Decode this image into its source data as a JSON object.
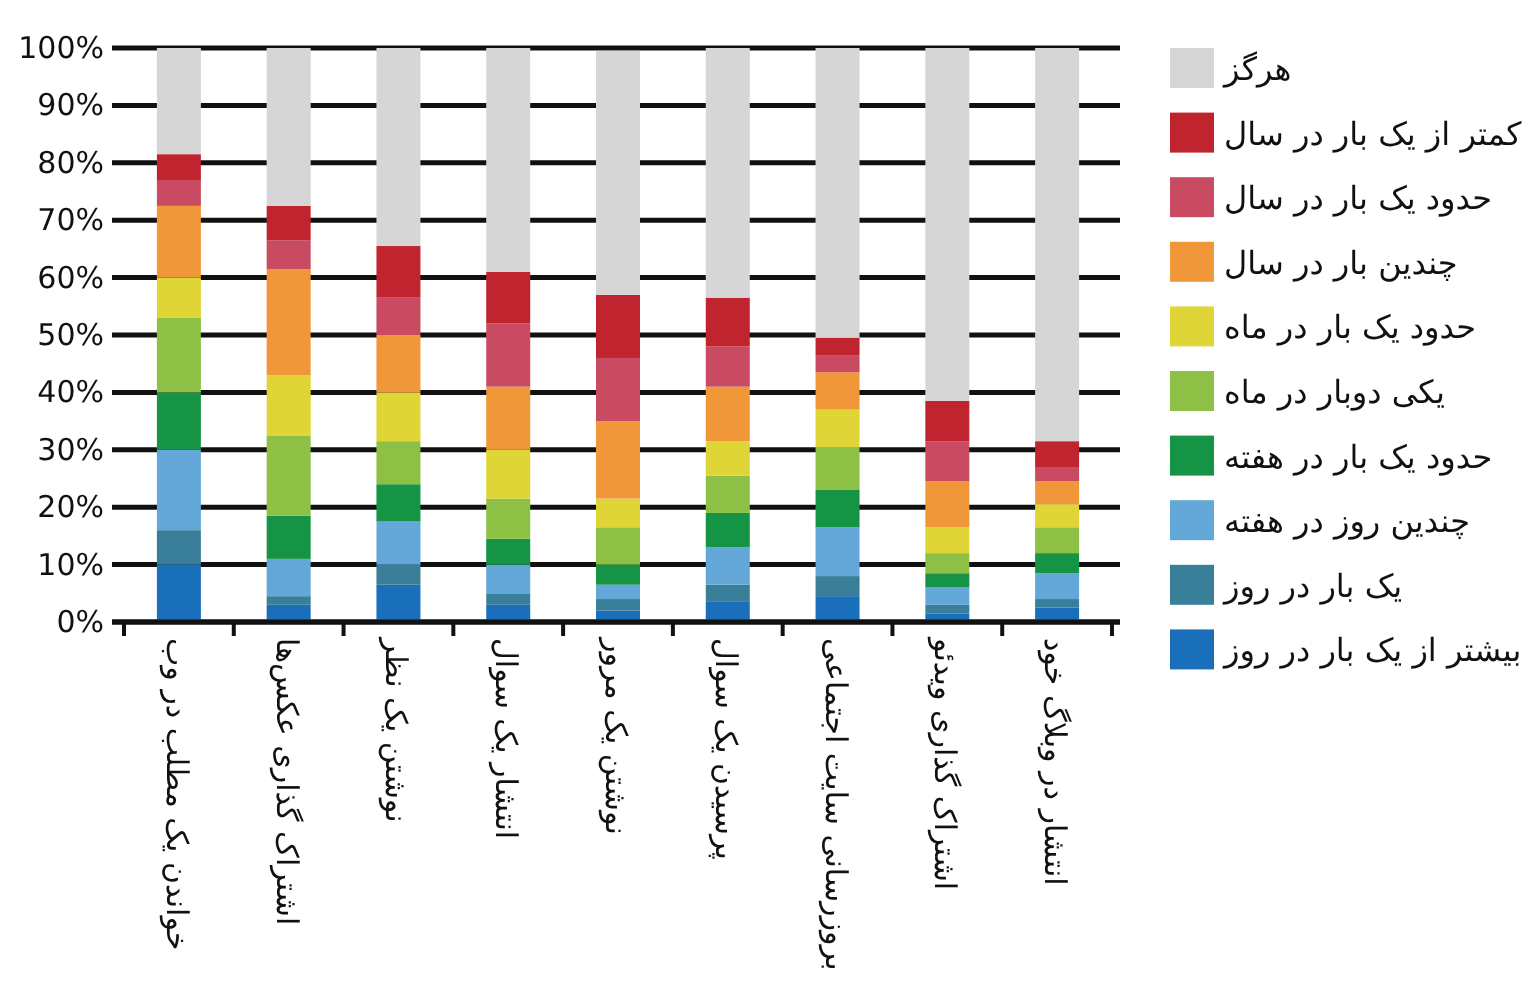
{
  "chart_data": {
    "type": "bar",
    "stacked": true,
    "categories": [
      "خواندن یک مطلب در وب",
      "اشتراک گذاری عکس‌ها",
      "نوشتن یک نظر",
      "انتشار یک سوال",
      "نوشتن یک مرور",
      "پرسیدن یک سوال",
      "بروزرسانی سایت اجتماعی",
      "اشتراک گذاری ویدئو",
      "انتشار در وبلاگ خود"
    ],
    "series": [
      {
        "name": "بیشتر از یک بار در روز",
        "color": "#1a6fba",
        "values": [
          10,
          3,
          6.5,
          3,
          2,
          3.5,
          4.5,
          1.5,
          2.5
        ]
      },
      {
        "name": "یک بار در روز",
        "color": "#3a7f99",
        "values": [
          6,
          1.5,
          3.5,
          2,
          2,
          3,
          3.5,
          1.5,
          1.5
        ]
      },
      {
        "name": "چندین روز در هفته",
        "color": "#63a8d8",
        "values": [
          14,
          6.5,
          7.5,
          5,
          2.5,
          6.5,
          8.5,
          3,
          4.5
        ]
      },
      {
        "name": "حدود یک بار در هفته",
        "color": "#159445",
        "values": [
          10,
          7.5,
          6.5,
          4.5,
          3.5,
          6,
          6.5,
          2.5,
          3.5
        ]
      },
      {
        "name": "یکی دوبار در ماه",
        "color": "#8dc044",
        "values": [
          13,
          14,
          7.5,
          7,
          6.5,
          6.5,
          7.5,
          3.5,
          4.5
        ]
      },
      {
        "name": "حدود یک بار در ماه",
        "color": "#e0d536",
        "values": [
          7,
          10.5,
          8.5,
          8.5,
          5,
          6,
          6.5,
          4.5,
          4
        ]
      },
      {
        "name": "چندین بار در سال",
        "color": "#f0973a",
        "values": [
          12.5,
          18.5,
          10,
          11,
          13.5,
          9.5,
          6.5,
          8,
          4
        ]
      },
      {
        "name": "حدود یک بار در سال",
        "color": "#c84b62",
        "values": [
          4.5,
          5,
          6.5,
          11,
          11,
          7,
          3,
          7,
          2.5
        ]
      },
      {
        "name": "کمتر از یک بار در سال",
        "color": "#c0242e",
        "values": [
          4.5,
          6,
          9,
          9,
          11,
          8.5,
          3,
          7,
          4.5
        ]
      },
      {
        "name": "هرگز",
        "color": "#d6d6d6",
        "values": [
          18.5,
          27.5,
          34.5,
          39,
          42.5,
          43.5,
          50.5,
          61.5,
          68.5
        ]
      }
    ],
    "ylim": [
      0,
      100
    ],
    "yticks": [
      {
        "value": 0,
        "label": "0%"
      },
      {
        "value": 10,
        "label": "10%"
      },
      {
        "value": 20,
        "label": "20%"
      },
      {
        "value": 30,
        "label": "30%"
      },
      {
        "value": 40,
        "label": "40%"
      },
      {
        "value": 50,
        "label": "50%"
      },
      {
        "value": 60,
        "label": "60%"
      },
      {
        "value": 70,
        "label": "70%"
      },
      {
        "value": 80,
        "label": "80%"
      },
      {
        "value": 90,
        "label": "90%"
      },
      {
        "value": 100,
        "label": "100%"
      }
    ],
    "grid": "y",
    "legend": "right"
  }
}
